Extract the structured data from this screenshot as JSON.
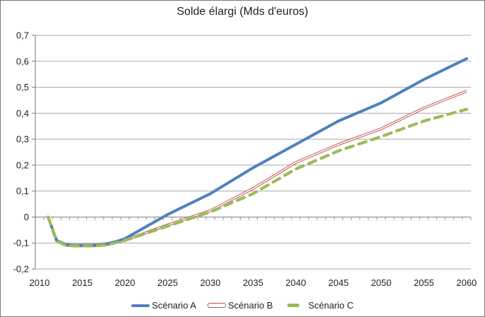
{
  "window": {
    "background": "#FFFFFF",
    "border_color": "#7A7A7A"
  },
  "chart_data": {
    "type": "line",
    "title": "Solde élargi (Mds d'euros)",
    "xlabel": "",
    "ylabel": "",
    "xlim": [
      2010,
      2060
    ],
    "ylim": [
      -0.2,
      0.7
    ],
    "grid": true,
    "legend_position": "bottom",
    "gridline_color": "#A8A8A8",
    "axis_color": "#8C8C8C",
    "text_color": "#1F1F1F",
    "x": [
      2011,
      2012,
      2013,
      2014,
      2015,
      2016,
      2017,
      2018,
      2019,
      2020,
      2025,
      2030,
      2035,
      2040,
      2045,
      2050,
      2055,
      2060
    ],
    "series": [
      {
        "name": "Scénario A",
        "color": "#4F81BD",
        "style": "solid-thick",
        "values": [
          0.0,
          -0.09,
          -0.105,
          -0.108,
          -0.108,
          -0.108,
          -0.107,
          -0.102,
          -0.094,
          -0.083,
          0.01,
          0.09,
          0.19,
          0.28,
          0.37,
          0.44,
          0.53,
          0.61
        ]
      },
      {
        "name": "Scénario B",
        "color": "#C0504D",
        "style": "outlined-thin",
        "values": [
          0.0,
          -0.092,
          -0.108,
          -0.111,
          -0.111,
          -0.111,
          -0.11,
          -0.106,
          -0.098,
          -0.09,
          -0.03,
          0.025,
          0.11,
          0.21,
          0.28,
          0.34,
          0.42,
          0.485
        ]
      },
      {
        "name": "Scénario C",
        "color": "#9BBB59",
        "style": "dashed-thick",
        "values": [
          0.0,
          -0.092,
          -0.108,
          -0.111,
          -0.111,
          -0.111,
          -0.11,
          -0.106,
          -0.098,
          -0.09,
          -0.035,
          0.02,
          0.09,
          0.185,
          0.255,
          0.31,
          0.37,
          0.415
        ]
      }
    ],
    "x_tick_values": [
      2010,
      2015,
      2020,
      2025,
      2030,
      2035,
      2040,
      2045,
      2050,
      2055,
      2060
    ],
    "x_tick_labels": [
      "2010",
      "2015",
      "2020",
      "2025",
      "2030",
      "2035",
      "2040",
      "2045",
      "2050",
      "2055",
      "2060"
    ],
    "y_tick_values": [
      0.7,
      0.6,
      0.5,
      0.4,
      0.3,
      0.2,
      0.1,
      0,
      -0.1,
      -0.2
    ],
    "y_tick_labels": [
      "0,7",
      "0,6",
      "0,5",
      "0,4",
      "0,3",
      "0,2",
      "0,1",
      "0",
      "-0,1",
      "-0,2"
    ]
  }
}
